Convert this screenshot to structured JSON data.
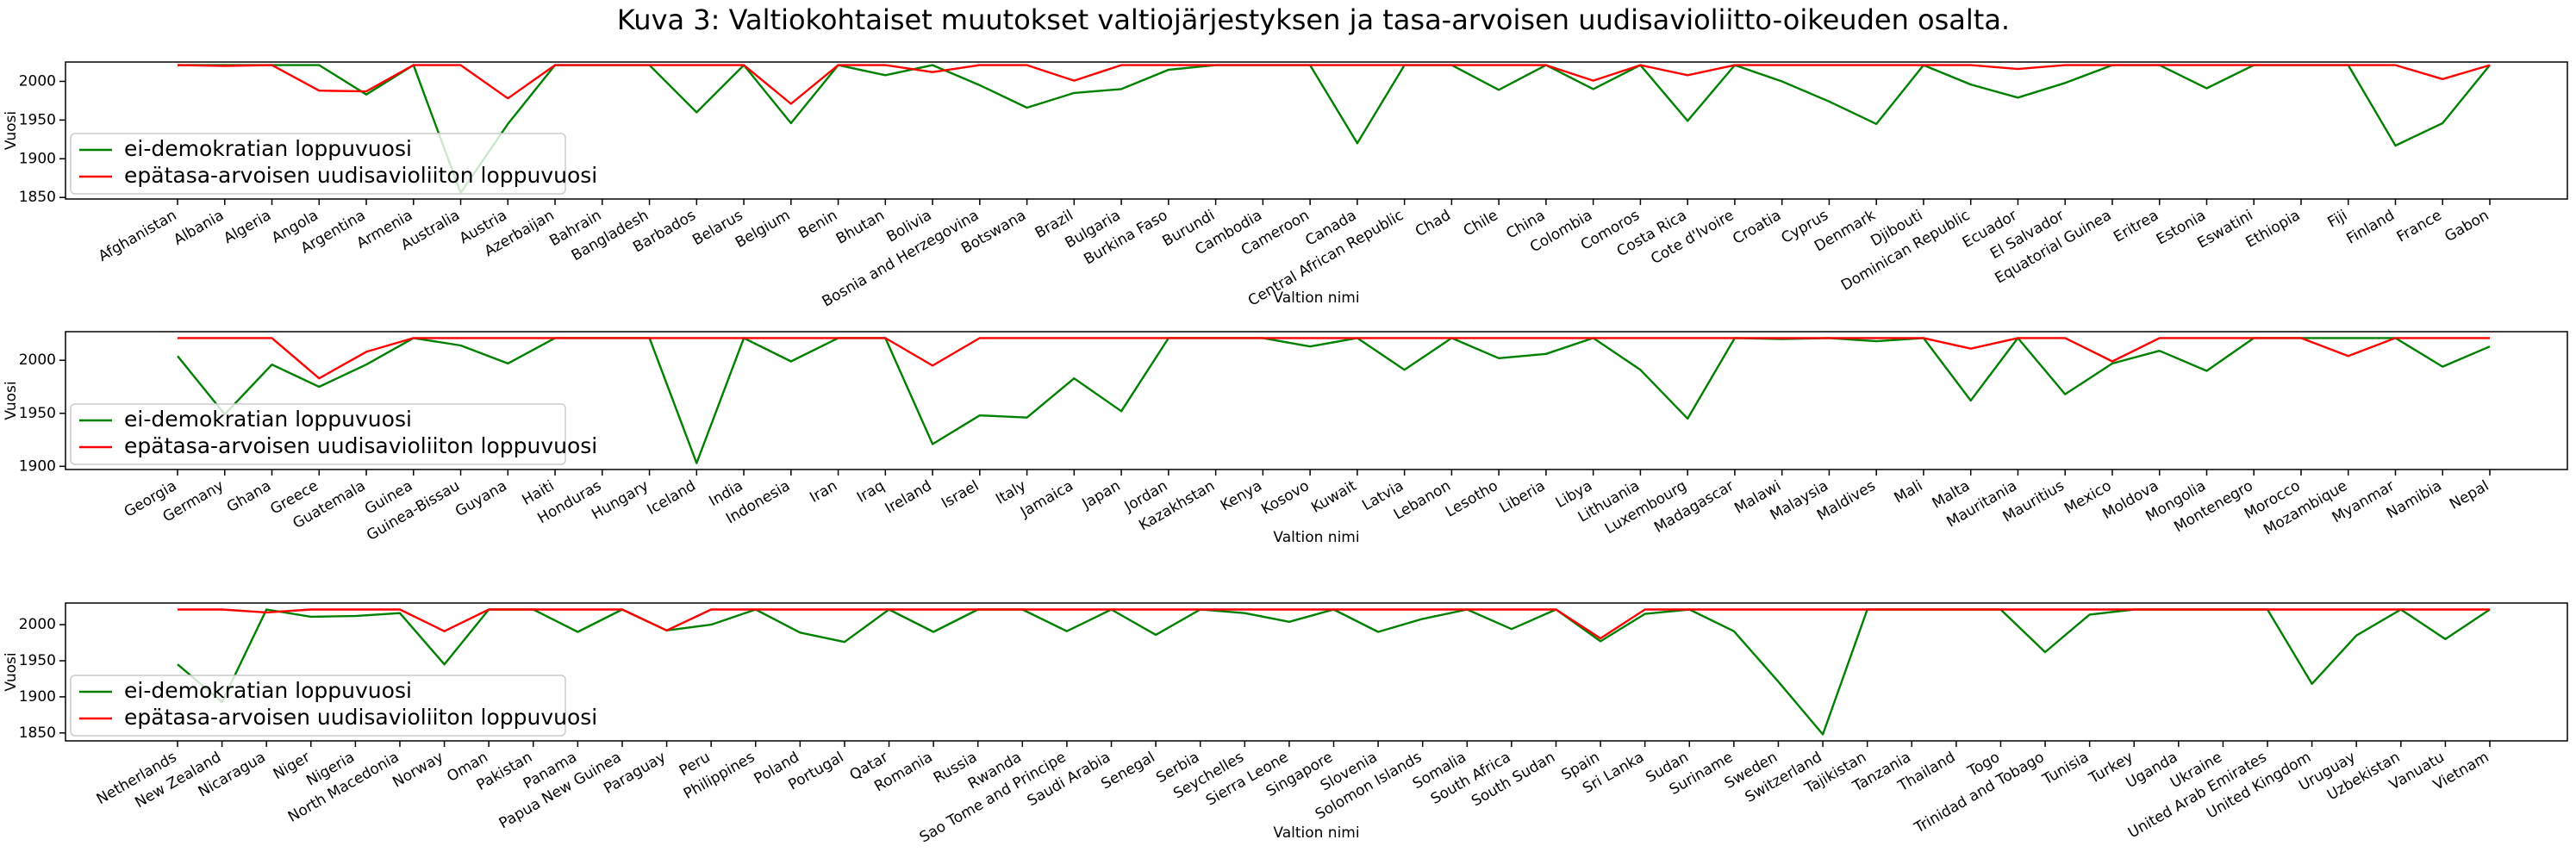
{
  "title": "Kuva 3: Valtiokohtaiset muutokset valtiojärjestyksen ja tasa-arvoisen uudisavioliitto-oikeuden osalta.",
  "chart_data": [
    {
      "type": "line",
      "xlabel": "Valtion nimi",
      "ylabel": "Vuosi",
      "legend": "lower left",
      "categories": [
        "Afghanistan",
        "Albania",
        "Algeria",
        "Angola",
        "Argentina",
        "Armenia",
        "Australia",
        "Austria",
        "Azerbaijan",
        "Bahrain",
        "Bangladesh",
        "Barbados",
        "Belarus",
        "Belgium",
        "Benin",
        "Bhutan",
        "Bolivia",
        "Bosnia and Herzegovina",
        "Botswana",
        "Brazil",
        "Bulgaria",
        "Burkina Faso",
        "Burundi",
        "Cambodia",
        "Cameroon",
        "Canada",
        "Central African Republic",
        "Chad",
        "Chile",
        "China",
        "Colombia",
        "Comoros",
        "Costa Rica",
        "Cote d'Ivoire",
        "Croatia",
        "Cyprus",
        "Denmark",
        "Djibouti",
        "Dominican Republic",
        "Ecuador",
        "El Salvador",
        "Equatorial Guinea",
        "Eritrea",
        "Estonia",
        "Eswatini",
        "Ethiopia",
        "Fiji",
        "Finland",
        "France",
        "Gabon"
      ],
      "series": [
        {
          "name": "ei-demokratian loppuvuosi",
          "color": "#008000",
          "values": [
            2021,
            2021,
            2021,
            2021,
            1983,
            2021,
            1856,
            1945,
            2021,
            2021,
            2021,
            1960,
            2021,
            1946,
            2021,
            2008,
            2021,
            1995,
            1966,
            1985,
            1990,
            2015,
            2021,
            2021,
            2021,
            1920,
            2021,
            2021,
            1989,
            2021,
            1990,
            2021,
            1949,
            2021,
            2000,
            1974,
            1945,
            2021,
            1996,
            1979,
            1998,
            2021,
            2021,
            1991,
            2021,
            2021,
            2021,
            1917,
            1946,
            2021
          ]
        },
        {
          "name": "epätasa-arvoisen uudisavioliiton loppuvuosi",
          "color": "#ff0000",
          "values": [
            2021,
            2020,
            2021,
            1988,
            1987,
            2021,
            2021,
            1978,
            2021,
            2021,
            2021,
            2021,
            2021,
            1971,
            2021,
            2021,
            2012,
            2021,
            2021,
            2001,
            2021,
            2021,
            2021,
            2021,
            2021,
            2021,
            2021,
            2021,
            2021,
            2021,
            2001,
            2021,
            2008,
            2021,
            2021,
            2021,
            2021,
            2021,
            2021,
            2016,
            2021,
            2021,
            2021,
            2021,
            2021,
            2021,
            2021,
            2021,
            2003,
            2021
          ]
        }
      ],
      "ylim": [
        1848,
        2025
      ],
      "yticks": [
        1850,
        1900,
        1950,
        2000
      ]
    },
    {
      "type": "line",
      "xlabel": "Valtion nimi",
      "ylabel": "Vuosi",
      "legend": "lower left",
      "categories": [
        "Georgia",
        "Germany",
        "Ghana",
        "Greece",
        "Guatemala",
        "Guinea",
        "Guinea-Bissau",
        "Guyana",
        "Haiti",
        "Honduras",
        "Hungary",
        "Iceland",
        "India",
        "Indonesia",
        "Iran",
        "Iraq",
        "Ireland",
        "Israel",
        "Italy",
        "Jamaica",
        "Japan",
        "Jordan",
        "Kazakhstan",
        "Kenya",
        "Kosovo",
        "Kuwait",
        "Latvia",
        "Lebanon",
        "Lesotho",
        "Liberia",
        "Libya",
        "Lithuania",
        "Luxembourg",
        "Madagascar",
        "Malawi",
        "Malaysia",
        "Maldives",
        "Mali",
        "Malta",
        "Mauritania",
        "Mauritius",
        "Mexico",
        "Moldova",
        "Mongolia",
        "Montenegro",
        "Morocco",
        "Mozambique",
        "Myanmar",
        "Namibia",
        "Nepal"
      ],
      "series": [
        {
          "name": "ei-demokratian loppuvuosi",
          "color": "#008000",
          "values": [
            2004,
            1949,
            1996,
            1975,
            1996,
            2021,
            2014,
            1997,
            2021,
            2021,
            2021,
            1903,
            2021,
            1999,
            2021,
            2021,
            1921,
            1948,
            1946,
            1983,
            1952,
            2021,
            2021,
            2021,
            2013,
            2021,
            1991,
            2021,
            2002,
            2006,
            2021,
            1991,
            1945,
            2021,
            2020,
            2021,
            2018,
            2021,
            1962,
            2021,
            1968,
            1997,
            2009,
            1990,
            2021,
            2021,
            2021,
            2021,
            1994,
            2013
          ]
        },
        {
          "name": "epätasa-arvoisen uudisavioliiton loppuvuosi",
          "color": "#ff0000",
          "values": [
            2021,
            2021,
            2021,
            1983,
            2008,
            2021,
            2021,
            2021,
            2021,
            2021,
            2021,
            2021,
            2021,
            2021,
            2021,
            2021,
            1995,
            2021,
            2021,
            2021,
            2021,
            2021,
            2021,
            2021,
            2021,
            2021,
            2021,
            2021,
            2021,
            2021,
            2021,
            2021,
            2021,
            2021,
            2021,
            2021,
            2021,
            2021,
            2011,
            2021,
            2021,
            1999,
            2021,
            2021,
            2021,
            2021,
            2004,
            2021,
            2021,
            2021
          ]
        }
      ],
      "ylim": [
        1897,
        2027
      ],
      "yticks": [
        1900,
        1950,
        2000
      ]
    },
    {
      "type": "line",
      "xlabel": "Valtion nimi",
      "ylabel": "Vuosi",
      "legend": "lower left",
      "categories": [
        "Netherlands",
        "New Zealand",
        "Nicaragua",
        "Niger",
        "Nigeria",
        "North Macedonia",
        "Norway",
        "Oman",
        "Pakistan",
        "Panama",
        "Papua New Guinea",
        "Paraguay",
        "Peru",
        "Philippines",
        "Poland",
        "Portugal",
        "Qatar",
        "Romania",
        "Russia",
        "Rwanda",
        "Sao Tome and Principe",
        "Saudi Arabia",
        "Senegal",
        "Serbia",
        "Seychelles",
        "Sierra Leone",
        "Singapore",
        "Slovenia",
        "Solomon Islands",
        "Somalia",
        "South Africa",
        "South Sudan",
        "Spain",
        "Sri Lanka",
        "Sudan",
        "Suriname",
        "Sweden",
        "Switzerland",
        "Tajikistan",
        "Tanzania",
        "Thailand",
        "Togo",
        "Trinidad and Tobago",
        "Tunisia",
        "Turkey",
        "Uganda",
        "Ukraine",
        "United Arab Emirates",
        "United Kingdom",
        "Uruguay",
        "Uzbekistan",
        "Vanuatu",
        "Vietnam"
      ],
      "series": [
        {
          "name": "ei-demokratian loppuvuosi",
          "color": "#008000",
          "values": [
            1945,
            1893,
            2021,
            2011,
            2012,
            2016,
            1945,
            2021,
            2021,
            1990,
            2021,
            1992,
            2000,
            2021,
            1989,
            1976,
            2021,
            1990,
            2021,
            2021,
            1991,
            2021,
            1986,
            2021,
            2016,
            2004,
            2021,
            1990,
            2008,
            2021,
            1994,
            2021,
            1977,
            2015,
            2021,
            1991,
            1921,
            1848,
            2021,
            2021,
            2021,
            2021,
            1962,
            2014,
            2021,
            2021,
            2021,
            2021,
            1918,
            1985,
            2021,
            1980,
            2021
          ]
        },
        {
          "name": "epätasa-arvoisen uudisavioliiton loppuvuosi",
          "color": "#ff0000",
          "values": [
            2021,
            2021,
            2017,
            2021,
            2021,
            2021,
            1991,
            2021,
            2021,
            2021,
            2021,
            1992,
            2021,
            2021,
            2021,
            2021,
            2021,
            2021,
            2021,
            2021,
            2021,
            2021,
            2021,
            2021,
            2021,
            2021,
            2021,
            2021,
            2021,
            2021,
            2021,
            2021,
            1981,
            2021,
            2021,
            2021,
            2021,
            2021,
            2021,
            2021,
            2021,
            2021,
            2021,
            2021,
            2021,
            2021,
            2021,
            2021,
            2021,
            2021,
            2021,
            2021,
            2021
          ]
        }
      ],
      "ylim": [
        1839,
        2030
      ],
      "yticks": [
        1850,
        1900,
        1950,
        2000
      ]
    }
  ]
}
